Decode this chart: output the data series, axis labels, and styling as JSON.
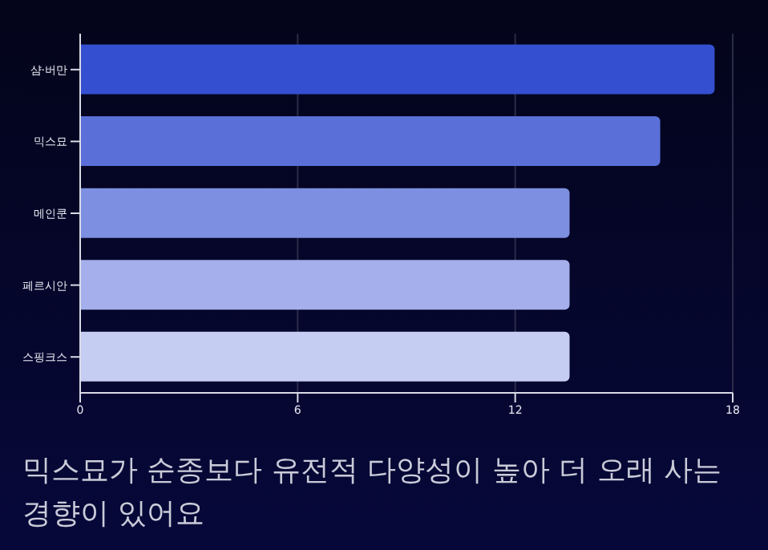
{
  "chart_data": {
    "type": "bar",
    "orientation": "horizontal",
    "title": "믹스묘가 순종보다 유전적 다양성이 높아 더 오래 사는 경향이 있어요",
    "categories": [
      "샴·버만",
      "믹스묘",
      "메인쿤",
      "페르시안",
      "스핑크스"
    ],
    "values": [
      17.5,
      16,
      13.5,
      13.5,
      13.5
    ],
    "colors": [
      "#3450d0",
      "#5a70d8",
      "#7d8fe0",
      "#a4afeb",
      "#c6cdf2"
    ],
    "xlim": [
      0,
      18
    ],
    "xticks": [
      0,
      6,
      12,
      18
    ],
    "grid": "x"
  }
}
